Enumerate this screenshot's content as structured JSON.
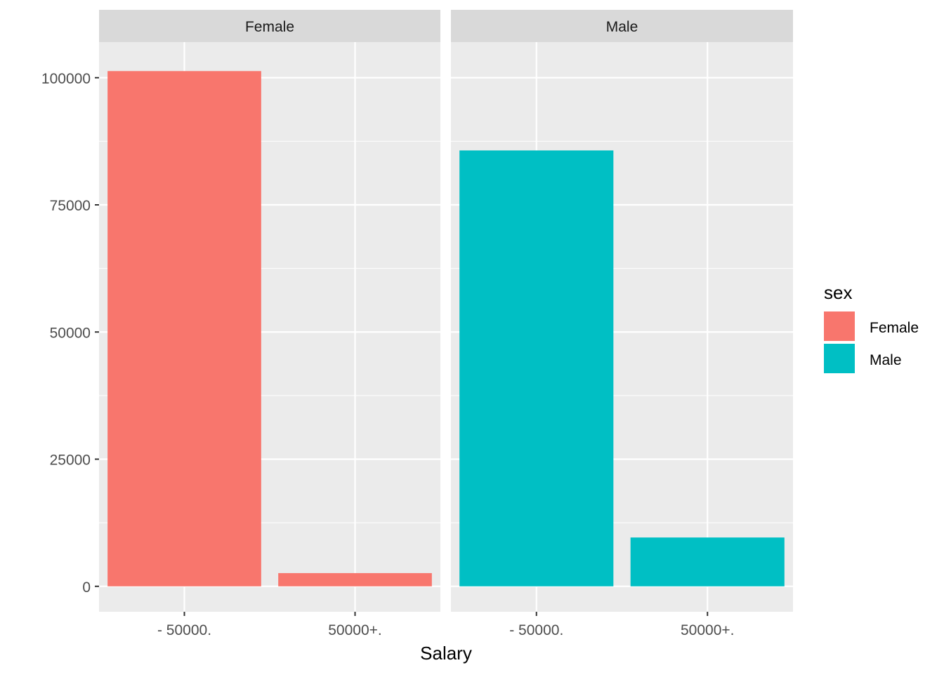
{
  "chart_data": {
    "type": "bar",
    "facets": [
      "Female",
      "Male"
    ],
    "categories": [
      "- 50000.",
      "50000+."
    ],
    "series": [
      {
        "name": "Female",
        "facet": "Female",
        "values": [
          101300,
          2600
        ]
      },
      {
        "name": "Male",
        "facet": "Male",
        "values": [
          85700,
          9600
        ]
      }
    ],
    "xlabel": "Salary",
    "ylabel": "",
    "ylim": [
      -5000,
      107000
    ],
    "yticks": [
      0,
      25000,
      50000,
      75000,
      100000
    ],
    "ytick_labels": [
      "0",
      "25000",
      "50000",
      "75000",
      "100000"
    ],
    "grid": true,
    "legend": {
      "title": "sex",
      "position": "right",
      "items": [
        {
          "label": "Female",
          "color": "#F8766D"
        },
        {
          "label": "Male",
          "color": "#00BFC4"
        }
      ]
    },
    "colors": {
      "panel_background": "#EBEBEB",
      "strip_background": "#D9D9D9",
      "gridline": "#FFFFFF",
      "text": "#4D4D4D"
    }
  }
}
